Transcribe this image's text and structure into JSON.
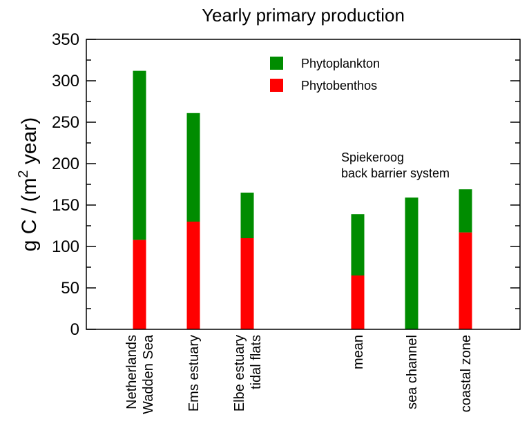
{
  "chart_data": {
    "type": "bar",
    "stacked": true,
    "title": "Yearly primary production",
    "ylabel_parts": {
      "pre": "g C / (m",
      "sup": "2",
      "post": " year)"
    },
    "ylim": [
      0,
      350
    ],
    "yticks": [
      0,
      50,
      100,
      150,
      200,
      250,
      300,
      350
    ],
    "grid": false,
    "legend_position": "top-center",
    "categories": [
      [
        "Netherlands",
        "Wadden Sea"
      ],
      [
        "Ems estuary"
      ],
      [
        "Elbe estuary",
        "tidal flats"
      ],
      [
        "mean"
      ],
      [
        "sea channel"
      ],
      [
        "coastal zone"
      ]
    ],
    "series": [
      {
        "name": "Phytobenthos",
        "color": "#ff0000",
        "values": [
          108,
          130,
          110,
          65,
          0,
          117
        ]
      },
      {
        "name": "Phytoplankton",
        "color": "#008c00",
        "values": [
          204,
          131,
          55,
          74,
          159,
          52
        ]
      }
    ],
    "legend_order": [
      1,
      0
    ],
    "annotation": [
      "Spiekeroog",
      "back barrier system"
    ]
  }
}
